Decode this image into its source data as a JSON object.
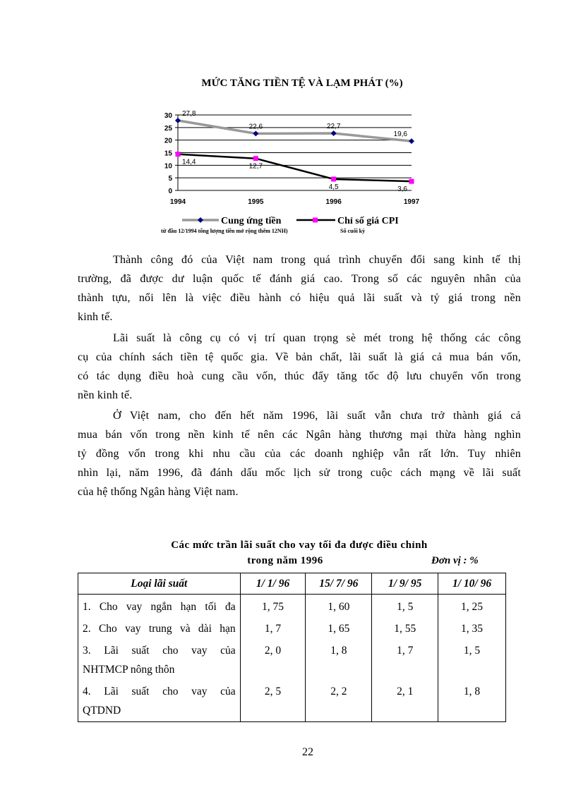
{
  "chart_data": {
    "type": "line",
    "title": "MỨC TĂNG TIỀN TỆ VÀ LẠM PHÁT (%)",
    "categories": [
      "1994",
      "1995",
      "1996",
      "1997"
    ],
    "ylim": [
      0,
      30
    ],
    "yticks": [
      "0",
      "5",
      "10",
      "15",
      "20",
      "25",
      "30"
    ],
    "grid": true,
    "legend": "bottom",
    "series": [
      {
        "name": "Cung ứng tiền",
        "values": [
          27.8,
          22.6,
          22.7,
          19.6
        ],
        "color": "#999999",
        "marker": "diamond",
        "marker_color": "#000080"
      },
      {
        "name": "Chỉ số giá CPI",
        "values": [
          14.4,
          12.7,
          4.5,
          3.6
        ],
        "color": "#000000",
        "marker": "square",
        "marker_color": "#ff00ff"
      }
    ],
    "data_labels": [
      "27,8",
      "22,6",
      "22,7",
      "19,6",
      "14,4",
      "12,7",
      "4,5",
      "3,6"
    ],
    "footnote_1": "từ đầu 12/1994 tổng lượng tiền mở rộng thêm 12NH)",
    "footnote_2": "Số cuối kỳ"
  },
  "paragraphs": [
    [
      "Thành công đó của Việt nam trong quá trình chuyển đổi sang kinh tế thị",
      "trường, đã được dư luận quốc tế đánh giá cao. Trong số các nguyên nhân của",
      "thành tựu, nổi lên là việc điều hành có hiệu quả lãi suất và tỷ giá trong nền",
      "kinh tế."
    ],
    [
      "Lãi suất là công cụ có vị trí quan trọng sè mét trong hệ thống các công",
      "cụ của chính sách tiền tệ quốc gia. Về bản chất, lãi suất là giá cả mua bán vốn,",
      "có tác dụng điều hoà cung cầu vốn, thúc đẩy tăng tốc độ lưu chuyển vốn trong",
      "nền kinh tế."
    ],
    [
      "Ở Việt nam, cho đến hết năm 1996, lãi suất vẫn chưa trở thành giá cả",
      "mua bán vốn trong nền kinh tế nên các Ngân hàng thương mại thừa hàng nghìn",
      "tỷ đồng vốn trong khi nhu cầu của các doanh nghiệp vẫn rất lớn. Tuy nhiên",
      "nhìn lại, năm 1996, đã đánh dấu mốc lịch sử trong cuộc cách mạng về lãi suất",
      "của hệ thống Ngân hàng Việt nam."
    ]
  ],
  "table": {
    "title_1": "Các mức trần lãi suất cho vay tối đa được điều chỉnh",
    "title_2": "trong năm 1996",
    "unit": "Đơn vị : %",
    "headers": [
      "Loại lãi suất",
      "1/ 1/ 96",
      "15/ 7/ 96",
      "1/ 9/ 95",
      "1/ 10/ 96"
    ],
    "rows": [
      {
        "label": [
          "1. Cho vay ngắn hạn tối đa"
        ],
        "values": [
          "1, 75",
          "1, 60",
          "1, 5",
          "1, 25"
        ]
      },
      {
        "label": [
          "2. Cho vay trung và dài hạn"
        ],
        "values": [
          "1, 7",
          "1, 65",
          "1, 55",
          "1, 35"
        ]
      },
      {
        "label": [
          "3. Lãi suất cho vay của",
          "NHTMCP nông thôn"
        ],
        "values": [
          "2, 0",
          "1, 8",
          "1, 7",
          "1, 5"
        ]
      },
      {
        "label": [
          "4. Lãi suất cho vay của",
          "QTDND"
        ],
        "values": [
          "2, 5",
          "2, 2",
          "2, 1",
          "1, 8"
        ]
      }
    ]
  },
  "page_number": "22"
}
